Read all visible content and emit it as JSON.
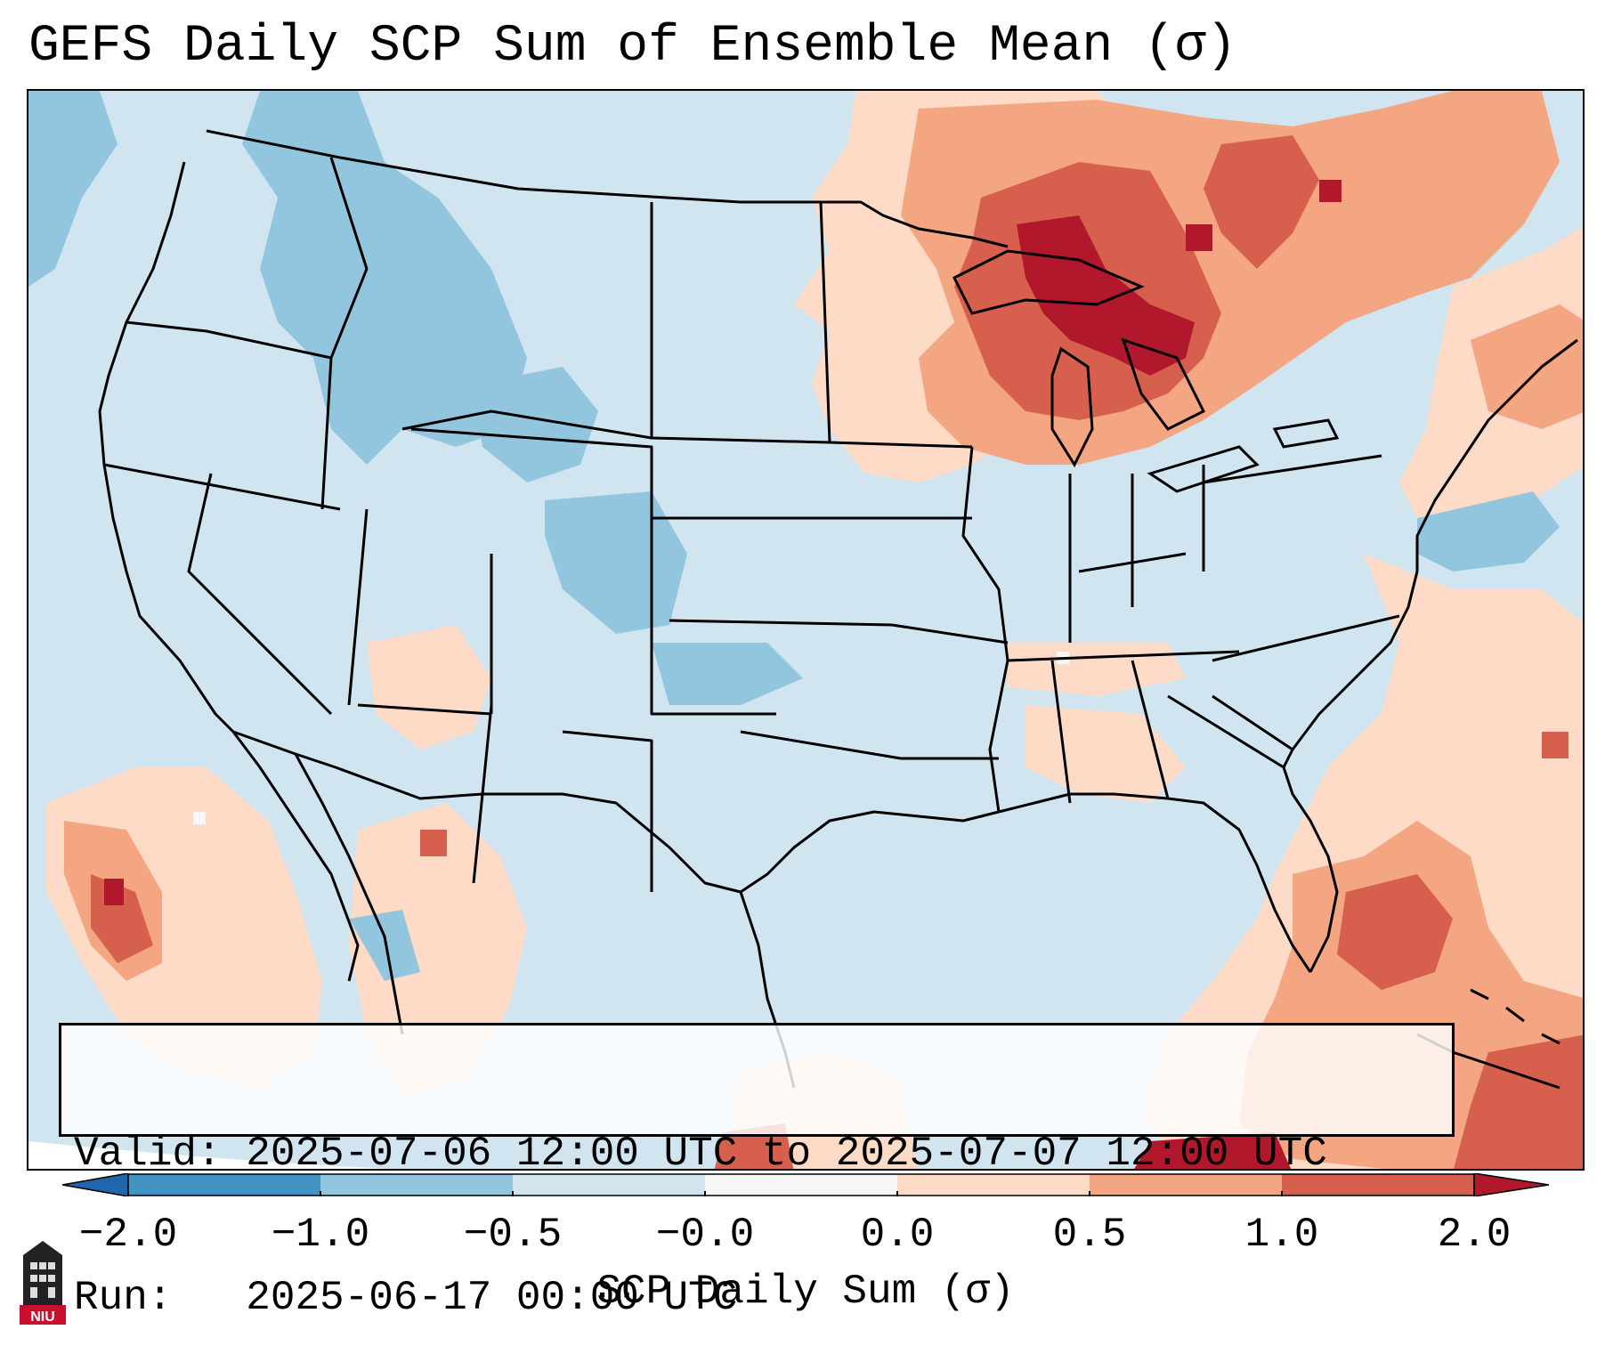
{
  "title": "GEFS Daily SCP Sum of Ensemble Mean (σ)",
  "info": {
    "valid": "Valid: 2025-07-06 12:00 UTC to 2025-07-07 12:00 UTC",
    "run": "Run:   2025-06-17 00:00 UTC"
  },
  "colorbar": {
    "label": "SCP Daily Sum (σ)",
    "ticks": [
      "−2.0",
      "−1.0",
      "−0.5",
      "−0.0",
      "0.0",
      "0.5",
      "1.0",
      "2.0"
    ],
    "bins": [
      {
        "from": "-inf",
        "to": -2.0,
        "color": "#2166ac"
      },
      {
        "from": -2.0,
        "to": -1.0,
        "color": "#4393c3"
      },
      {
        "from": -1.0,
        "to": -0.5,
        "color": "#92c5de"
      },
      {
        "from": -0.5,
        "to": 0.0,
        "color": "#d1e5f0"
      },
      {
        "from": 0.0,
        "to": 0.0,
        "color": "#f7f7f7"
      },
      {
        "from": 0.0,
        "to": 0.5,
        "color": "#fddbc7"
      },
      {
        "from": 0.5,
        "to": 1.0,
        "color": "#f4a582"
      },
      {
        "from": 1.0,
        "to": 2.0,
        "color": "#d6604d"
      },
      {
        "from": 2.0,
        "to": "inf",
        "color": "#b2182b"
      }
    ]
  },
  "map": {
    "region": "CONUS",
    "projection": "Lambert Conformal",
    "background_category": "-0.5 to 0.0",
    "anomalies": [
      {
        "area": "Upper Great Lakes / Ontario",
        "category": "1.0 to 2.0+"
      },
      {
        "area": "Northern Maine / Quebec",
        "category": "0.5 to 1.0"
      },
      {
        "area": "Florida / Western Atlantic",
        "category": "0.5 to 1.0"
      },
      {
        "area": "Eastern Pacific off Baja",
        "category": "0.5 to 1.0"
      },
      {
        "area": "Idaho / Wyoming / Colorado",
        "category": "-1.0 to -0.5"
      },
      {
        "area": "Pacific Northwest coast",
        "category": "-1.0 to -0.5"
      }
    ]
  },
  "logo": {
    "text": "NIU"
  }
}
